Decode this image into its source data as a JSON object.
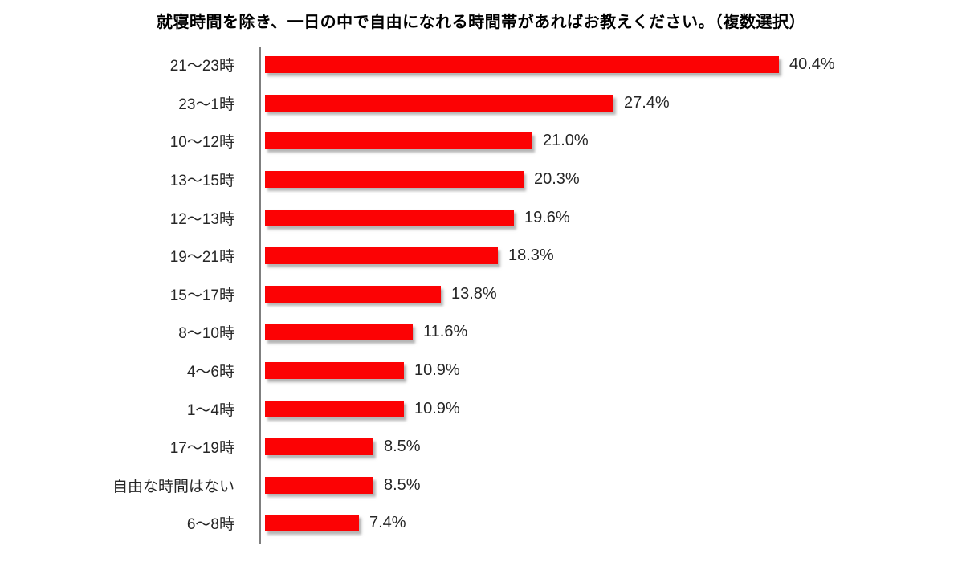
{
  "chart_data": {
    "type": "bar",
    "orientation": "horizontal",
    "title": "就寝時間を除き、一日の中で自由になれる時間帯があればお教えください。（複数選択）",
    "categories": [
      "21～23時",
      "23～1時",
      "10～12時",
      "13～15時",
      "12～13時",
      "19～21時",
      "15～17時",
      "8～10時",
      "4～6時",
      "1～4時",
      "17～19時",
      "自由な時間はない",
      "6～8時"
    ],
    "values": [
      40.4,
      27.4,
      21.0,
      20.3,
      19.6,
      18.3,
      13.8,
      11.6,
      10.9,
      10.9,
      8.5,
      8.5,
      7.4
    ],
    "value_labels": [
      "40.4%",
      "27.4%",
      "21.0%",
      "20.3%",
      "19.6%",
      "18.3%",
      "13.8%",
      "11.6%",
      "10.9%",
      "10.9%",
      "8.5%",
      "8.5%",
      "7.4%"
    ],
    "value_suffix": "%",
    "xlim": [
      0,
      45
    ],
    "bar_color": "#fc0204",
    "axis_color": "#7f7f7f",
    "text_color": "#262626",
    "grid": "off",
    "legend": "none",
    "sorted": "descending"
  }
}
